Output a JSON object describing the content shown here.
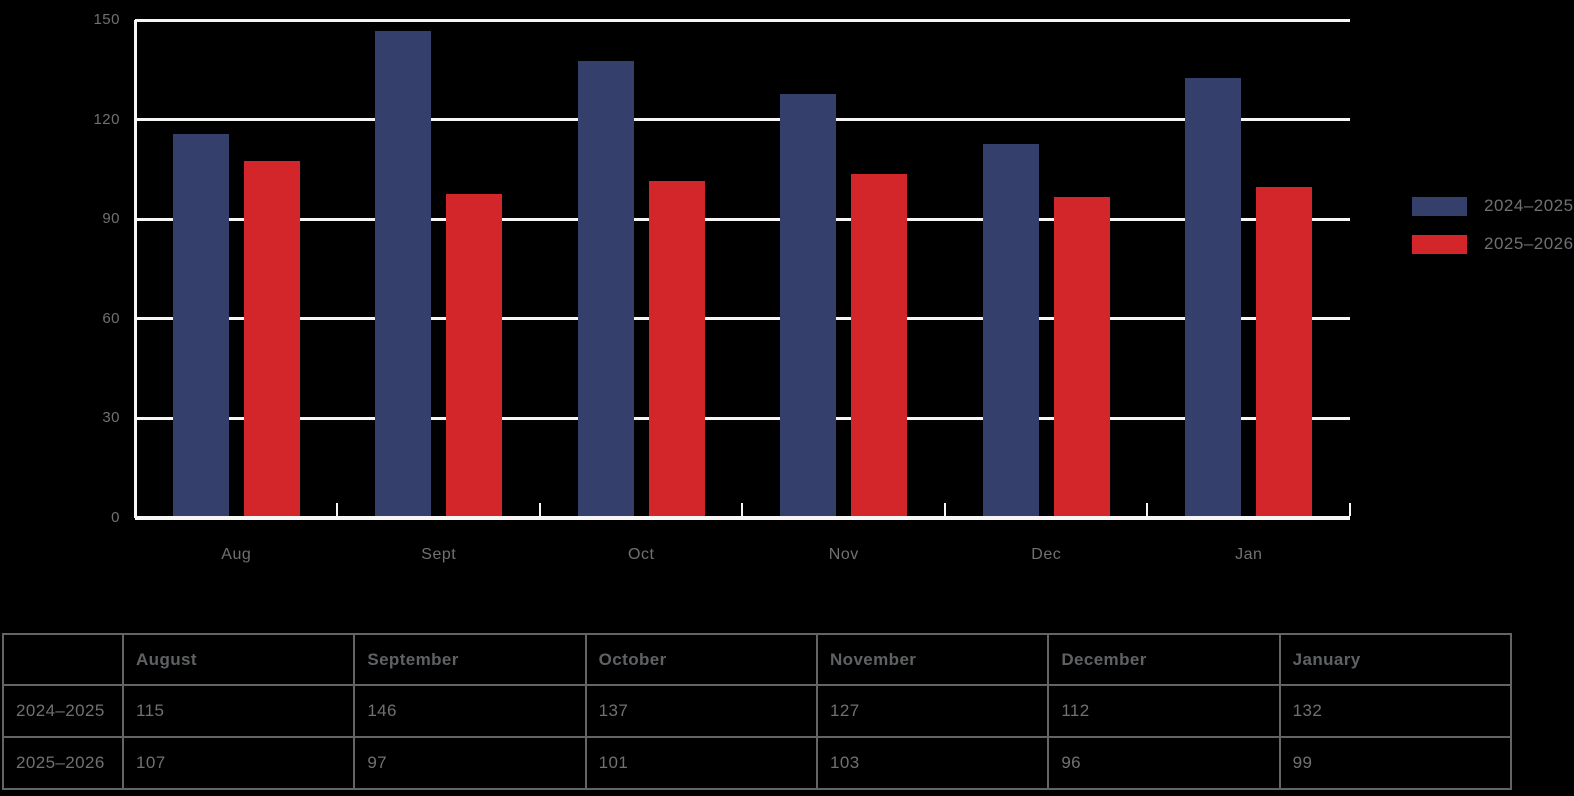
{
  "chart_data": {
    "type": "bar",
    "title": "",
    "categories": [
      "Aug",
      "Sept",
      "Oct",
      "Nov",
      "Dec",
      "Jan"
    ],
    "series": [
      {
        "name": "2024–2025",
        "color": "#343F6B",
        "values": [
          115,
          146,
          137,
          127,
          112,
          132
        ]
      },
      {
        "name": "2025–2026",
        "color": "#D2262A",
        "values": [
          107,
          97,
          101,
          103,
          96,
          99
        ]
      }
    ],
    "xlabel": "",
    "ylabel": "",
    "ylim": [
      0,
      150
    ],
    "yticks": [
      0,
      30,
      60,
      90,
      120,
      150
    ],
    "grid": "horizontal",
    "legend_position": "right"
  },
  "table": {
    "corner_label": "",
    "headers": [
      "August",
      "September",
      "October",
      "November",
      "December",
      "January"
    ],
    "rows": [
      {
        "label": "2024–2025",
        "values": [
          "115",
          "146",
          "137",
          "127",
          "112",
          "132"
        ]
      },
      {
        "label": "2025–2026",
        "values": [
          "107",
          "97",
          "101",
          "103",
          "96",
          "99"
        ]
      }
    ]
  },
  "colors": {
    "background": "#000000",
    "gridline": "#F7F6F4",
    "axis": "#F7F6F4",
    "label_text": "#6F7173",
    "legend_text": "#6F7173",
    "table_text": "#6F7173",
    "table_header_text": "#5F6264",
    "table_border": "#626466",
    "series_1": "#343F6B",
    "series_2": "#D2262A"
  }
}
